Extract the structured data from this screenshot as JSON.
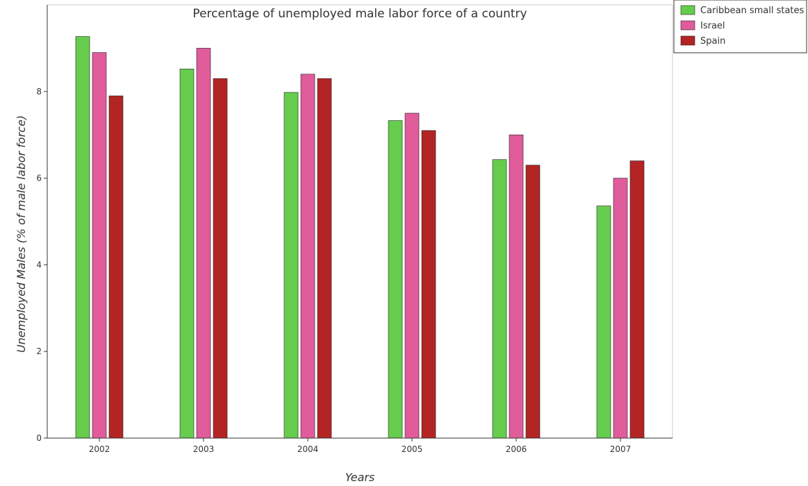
{
  "chart_data": {
    "type": "bar",
    "title": "Percentage of unemployed male labor force of a country",
    "xlabel": "Years",
    "ylabel": "Unemployed Males (% of male labor force)",
    "categories": [
      "2002",
      "2003",
      "2004",
      "2005",
      "2006",
      "2007"
    ],
    "ylim": [
      0,
      10
    ],
    "yticks": [
      0,
      2,
      4,
      6,
      8
    ],
    "grid": false,
    "legend_position": "top-right",
    "series": [
      {
        "name": "Caribbean small states",
        "color": "#66cc4d",
        "values": [
          9.27,
          8.52,
          7.98,
          7.33,
          6.43,
          5.36
        ]
      },
      {
        "name": "Israel",
        "color": "#e05c9a",
        "values": [
          8.9,
          9.0,
          8.4,
          7.5,
          7.0,
          6.0
        ]
      },
      {
        "name": "Spain",
        "color": "#b32424",
        "values": [
          7.9,
          8.3,
          8.3,
          7.1,
          6.3,
          6.4
        ]
      }
    ]
  }
}
